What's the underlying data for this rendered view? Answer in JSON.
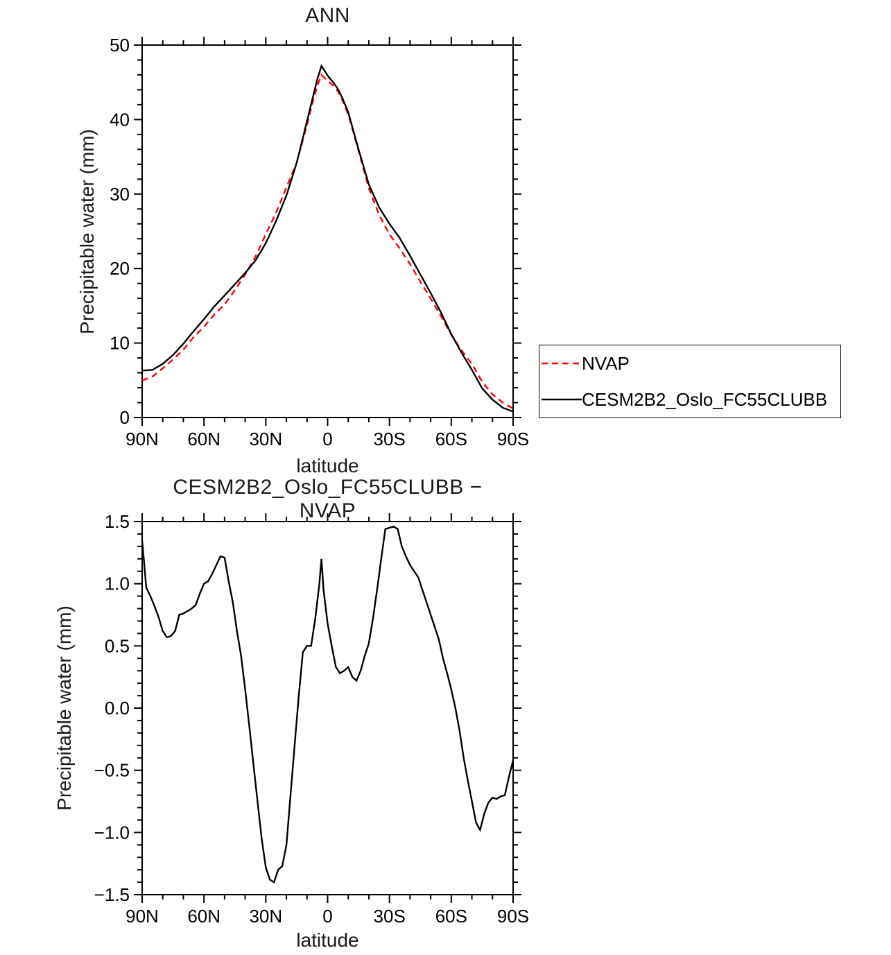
{
  "figure": {
    "background": "#ffffff",
    "accent_colors": {
      "nvap_red": "#ff0000",
      "line_black": "#000000"
    }
  },
  "legend": {
    "entries": [
      {
        "label": "NVAP",
        "color": "#ff0000",
        "dashed": true
      },
      {
        "label": "CESM2B2_Oslo_FC55CLUBB",
        "color": "#000000",
        "dashed": false
      }
    ]
  },
  "chart_data": [
    {
      "type": "line",
      "title": "ANN",
      "xlabel": "latitude",
      "ylabel": "Precipitable water (mm)",
      "xlim": [
        90,
        -90
      ],
      "ylim": [
        0,
        50
      ],
      "grid": false,
      "legend_position": "outside-right",
      "xticks": {
        "values": [
          90,
          60,
          30,
          0,
          -30,
          -60,
          -90
        ],
        "labels": [
          "90N",
          "60N",
          "30N",
          "0",
          "30S",
          "60S",
          "90S"
        ]
      },
      "yticks": {
        "values": [
          0,
          10,
          20,
          30,
          40,
          50
        ],
        "labels": [
          "0",
          "10",
          "20",
          "30",
          "40",
          "50"
        ]
      },
      "x_minor_step": 10,
      "y_minor_step": 2,
      "series": [
        {
          "name": "NVAP",
          "color": "#ff0000",
          "dash": "9 6",
          "width": 2.4,
          "lat": [
            90,
            85,
            80,
            75,
            70,
            65,
            60,
            55,
            50,
            45,
            40,
            35,
            30,
            25,
            20,
            15,
            10,
            7,
            5,
            3,
            0,
            -3,
            -5,
            -7,
            -10,
            -13,
            -15,
            -20,
            -25,
            -30,
            -35,
            -40,
            -45,
            -50,
            -55,
            -60,
            -65,
            -70,
            -75,
            -80,
            -85,
            -90
          ],
          "values": [
            4.95,
            5.5,
            6.6,
            7.8,
            9.1,
            10.8,
            12.2,
            13.8,
            15.2,
            17.1,
            19.2,
            21.6,
            24.6,
            27.5,
            30.9,
            34.2,
            39.3,
            42.6,
            44.5,
            46.0,
            45.2,
            44.5,
            43.8,
            42.7,
            40.7,
            37.8,
            35.8,
            30.8,
            27.2,
            24.6,
            22.7,
            20.6,
            18.2,
            16.0,
            13.6,
            11.1,
            9.0,
            7.2,
            4.8,
            3.1,
            2.0,
            1.2
          ]
        },
        {
          "name": "CESM2B2_Oslo_FC55CLUBB",
          "color": "#000000",
          "dash": null,
          "width": 2.4,
          "lat": [
            90,
            85,
            80,
            75,
            70,
            65,
            60,
            55,
            50,
            45,
            40,
            35,
            30,
            25,
            20,
            15,
            10,
            7,
            5,
            3,
            0,
            -3,
            -5,
            -7,
            -10,
            -13,
            -15,
            -20,
            -25,
            -30,
            -35,
            -40,
            -45,
            -50,
            -55,
            -60,
            -65,
            -70,
            -75,
            -80,
            -85,
            -90
          ],
          "values": [
            6.3,
            6.4,
            7.2,
            8.4,
            9.9,
            11.6,
            13.2,
            14.9,
            16.4,
            17.9,
            19.4,
            21.1,
            23.4,
            26.4,
            29.8,
            34.2,
            39.8,
            43.2,
            45.4,
            47.2,
            45.9,
            44.9,
            44.1,
            43.0,
            41.0,
            38.0,
            36.0,
            31.3,
            28.2,
            26.0,
            24.1,
            21.7,
            19.2,
            16.7,
            14.1,
            11.2,
            8.7,
            6.4,
            3.9,
            2.4,
            1.3,
            0.8
          ]
        }
      ]
    },
    {
      "type": "line",
      "title": "CESM2B2_Oslo_FC55CLUBB − NVAP",
      "xlabel": "latitude",
      "ylabel": "Precipitable water (mm)",
      "xlim": [
        90,
        -90
      ],
      "ylim": [
        -1.5,
        1.5
      ],
      "grid": false,
      "xticks": {
        "values": [
          90,
          60,
          30,
          0,
          -30,
          -60,
          -90
        ],
        "labels": [
          "90N",
          "60N",
          "30N",
          "0",
          "30S",
          "60S",
          "90S"
        ]
      },
      "yticks": {
        "values": [
          -1.5,
          -1.0,
          -0.5,
          0.0,
          0.5,
          1.0,
          1.5
        ],
        "labels": [
          "−1.5",
          "−1.0",
          "−0.5",
          "0.0",
          "0.5",
          "1.0",
          "1.5"
        ]
      },
      "x_minor_step": 10,
      "y_minor_step": 0.1,
      "series": [
        {
          "name": "CESM2B2_Oslo_FC55CLUBB_minus_NVAP",
          "color": "#000000",
          "dash": null,
          "width": 2.4,
          "lat": [
            90,
            88,
            86,
            84,
            82,
            80,
            78,
            76,
            74,
            72,
            70,
            68,
            66,
            64,
            62,
            60,
            58,
            56,
            54,
            52,
            50,
            48,
            46,
            44,
            42,
            40,
            38,
            36,
            34,
            32,
            30,
            28,
            26,
            24,
            22,
            20,
            18,
            16,
            14,
            12,
            10,
            8,
            6,
            4,
            3,
            2,
            0,
            -2,
            -4,
            -6,
            -8,
            -10,
            -12,
            -14,
            -16,
            -18,
            -20,
            -22,
            -24,
            -26,
            -28,
            -30,
            -32,
            -34,
            -36,
            -38,
            -40,
            -42,
            -44,
            -46,
            -48,
            -50,
            -52,
            -54,
            -56,
            -58,
            -60,
            -62,
            -64,
            -66,
            -68,
            -70,
            -72,
            -74,
            -76,
            -78,
            -80,
            -82,
            -84,
            -86,
            -88,
            -90
          ],
          "values": [
            1.35,
            0.97,
            0.9,
            0.82,
            0.73,
            0.62,
            0.57,
            0.58,
            0.62,
            0.75,
            0.76,
            0.78,
            0.8,
            0.83,
            0.92,
            1.0,
            1.02,
            1.08,
            1.15,
            1.22,
            1.21,
            1.02,
            0.85,
            0.62,
            0.42,
            0.15,
            -0.15,
            -0.45,
            -0.75,
            -1.05,
            -1.28,
            -1.38,
            -1.4,
            -1.3,
            -1.27,
            -1.1,
            -0.7,
            -0.3,
            0.1,
            0.45,
            0.5,
            0.5,
            0.72,
            1.0,
            1.2,
            0.95,
            0.68,
            0.5,
            0.33,
            0.28,
            0.3,
            0.33,
            0.25,
            0.22,
            0.3,
            0.42,
            0.52,
            0.72,
            0.95,
            1.2,
            1.44,
            1.45,
            1.46,
            1.44,
            1.3,
            1.22,
            1.15,
            1.1,
            1.05,
            0.95,
            0.85,
            0.75,
            0.65,
            0.55,
            0.4,
            0.28,
            0.15,
            0.0,
            -0.18,
            -0.4,
            -0.58,
            -0.75,
            -0.92,
            -0.98,
            -0.85,
            -0.76,
            -0.72,
            -0.73,
            -0.71,
            -0.7,
            -0.55,
            -0.42
          ]
        }
      ]
    }
  ]
}
